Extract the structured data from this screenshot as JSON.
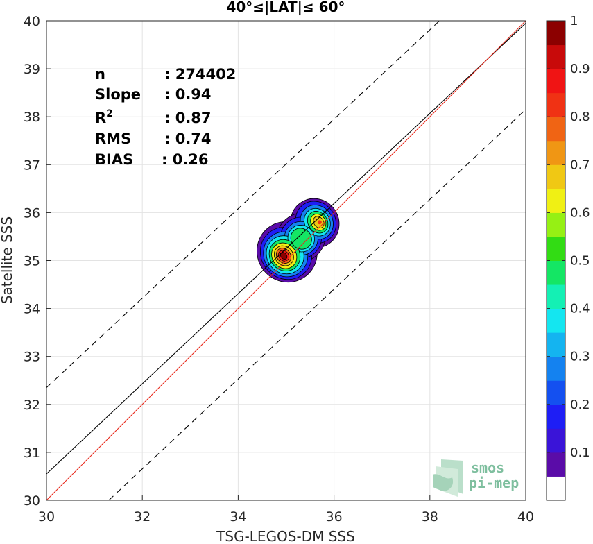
{
  "chart_data": {
    "type": "heatmap",
    "title": "40°≤|LAT|≤ 60°",
    "xlabel": "TSG-LEGOS-DM SSS",
    "ylabel": "Satellite SSS",
    "xlim": [
      30,
      40
    ],
    "ylim": [
      30,
      40
    ],
    "x_ticks": [
      "30",
      "32",
      "34",
      "36",
      "38",
      "40"
    ],
    "y_ticks": [
      "30",
      "31",
      "32",
      "33",
      "34",
      "35",
      "36",
      "37",
      "38",
      "39",
      "40"
    ],
    "grid": true,
    "stats": [
      {
        "label": "n",
        "value": ": 274402"
      },
      {
        "label": "Slope",
        "value": ": 0.94"
      },
      {
        "label": "R",
        "sup": "2",
        "value": ": 0.87"
      },
      {
        "label": "RMS",
        "value": ": 0.74"
      },
      {
        "label": "BIAS",
        "value": ": 0.26"
      }
    ],
    "lines": {
      "one_to_one": {
        "from": [
          30,
          30
        ],
        "to": [
          40,
          40
        ],
        "color": "#e8291c"
      },
      "regression": {
        "from": [
          30,
          30.55
        ],
        "to": [
          40,
          39.95
        ],
        "color": "#000000"
      },
      "upper_bound": {
        "from": [
          30,
          32.35
        ],
        "to": [
          38.2,
          40
        ],
        "color": "#000000",
        "style": "dashed"
      },
      "lower_bound": {
        "from": [
          31.3,
          30
        ],
        "to": [
          40,
          38.15
        ],
        "color": "#000000",
        "style": "dashed"
      }
    },
    "density_peaks": [
      {
        "x": 34.95,
        "y": 35.1,
        "level": 1.0
      },
      {
        "x": 35.7,
        "y": 35.8,
        "level": 0.75
      }
    ],
    "colorbar": {
      "range": [
        0,
        1
      ],
      "tick_labels": [
        "0.1",
        "0.2",
        "0.3",
        "0.4",
        "0.5",
        "0.6",
        "0.7",
        "0.8",
        "0.9",
        "1"
      ],
      "colors": [
        "#ffffff",
        "#5a0ca8",
        "#3a14d8",
        "#1e1ef5",
        "#1450f0",
        "#1482f0",
        "#14b4f0",
        "#14e6f0",
        "#14f0b4",
        "#14e664",
        "#32dc14",
        "#96f014",
        "#f0f014",
        "#f0c814",
        "#f09614",
        "#f06414",
        "#f03214",
        "#f01414",
        "#c80a0a",
        "#8c0000"
      ]
    }
  },
  "logo": {
    "line1": "smos",
    "line2": "pi-mep"
  }
}
